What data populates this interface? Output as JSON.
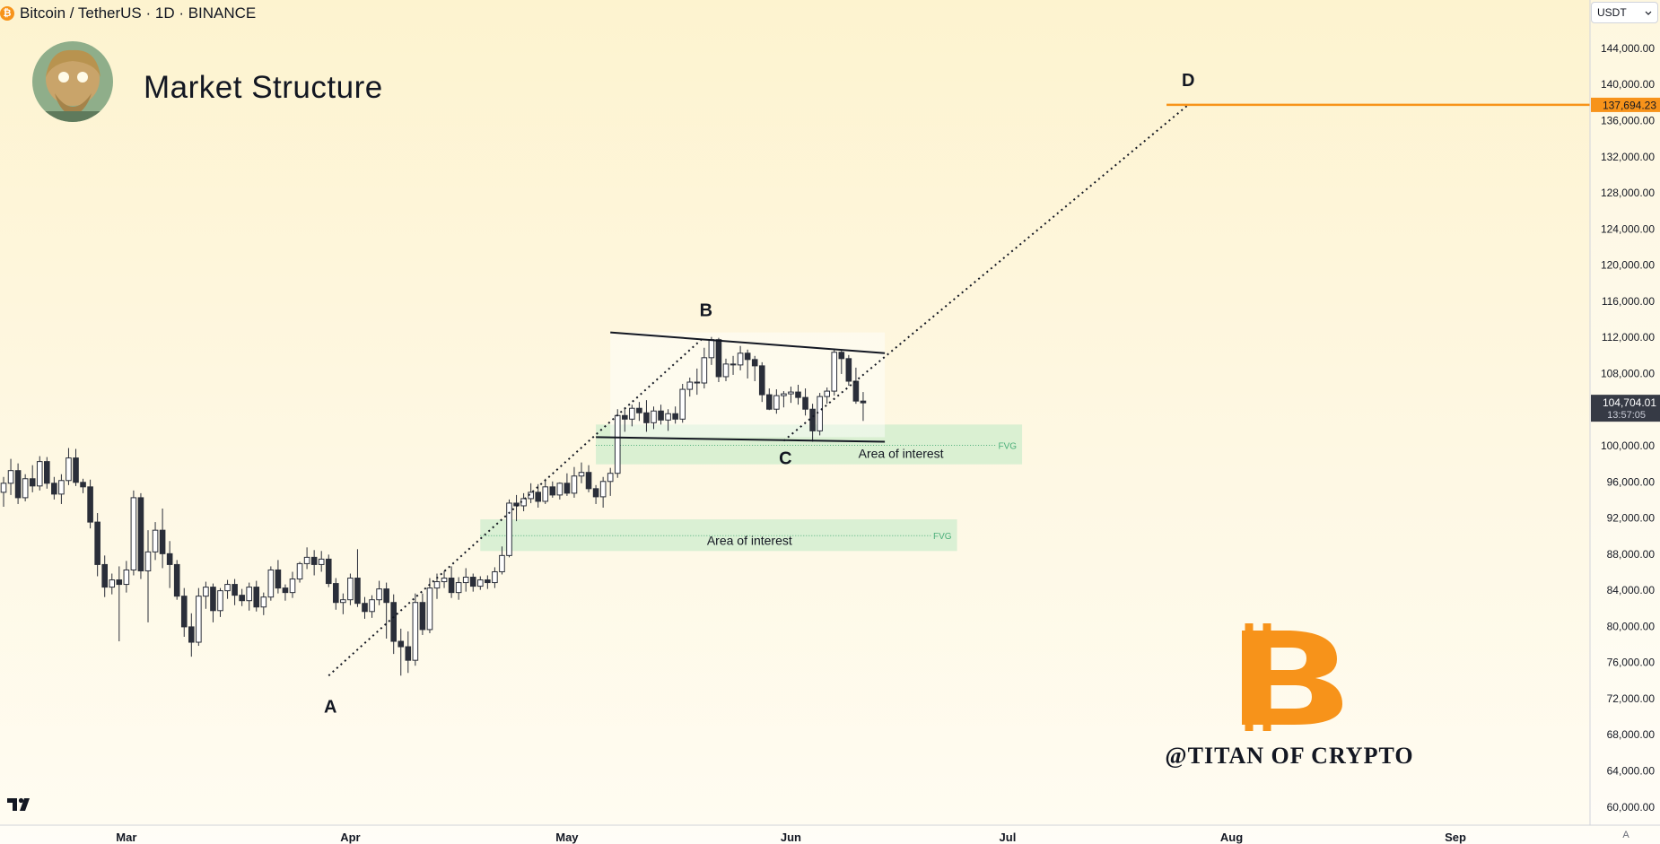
{
  "header": {
    "symbol_title": "Bitcoin / TetherUS · 1D · BINANCE",
    "coin_icon": "bitcoin-icon",
    "currency": "USDT",
    "currency_icon": "chevron-down-icon"
  },
  "headline": "Market Structure",
  "watermark": "@TITAN OF CRYPTO",
  "scale_mode": "A",
  "colors": {
    "up_candle": "#ffffff",
    "down_candle": "#2a2e39",
    "target_line": "#f7931a",
    "zone_fill": "#b5e8c2",
    "fvg_text": "#4caf7a",
    "price_label_bg": "#363a45"
  },
  "chart_data": {
    "type": "candlestick",
    "symbol": "Bitcoin / TetherUS",
    "interval": "1D",
    "exchange": "BINANCE",
    "y_axis": {
      "range": [
        58000,
        148000
      ],
      "ticks": [
        "60,000.00",
        "64,000.00",
        "68,000.00",
        "72,000.00",
        "76,000.00",
        "80,000.00",
        "84,000.00",
        "88,000.00",
        "92,000.00",
        "96,000.00",
        "100,000.00",
        "104,000.00",
        "108,000.00",
        "112,000.00",
        "116,000.00",
        "120,000.00",
        "124,000.00",
        "128,000.00",
        "132,000.00",
        "136,000.00",
        "140,000.00",
        "144,000.00"
      ]
    },
    "x_axis": {
      "labels": [
        {
          "text": "Mar",
          "day": 17
        },
        {
          "text": "Apr",
          "day": 48
        },
        {
          "text": "May",
          "day": 78
        },
        {
          "text": "Jun",
          "day": 109
        },
        {
          "text": "Jul",
          "day": 139
        },
        {
          "text": "Aug",
          "day": 170
        },
        {
          "text": "Sep",
          "day": 201
        }
      ]
    },
    "current_price": {
      "value": "104,704.01",
      "countdown": "13:57:05",
      "price": 104704
    },
    "target_price": {
      "value": "137,694.23",
      "price": 137694
    },
    "candles": [
      [
        94800,
        96500,
        93200,
        95800
      ],
      [
        95800,
        98500,
        94500,
        97200
      ],
      [
        97200,
        98000,
        93500,
        94200
      ],
      [
        94200,
        96800,
        93800,
        96300
      ],
      [
        96300,
        97800,
        94800,
        95500
      ],
      [
        95500,
        98800,
        95000,
        98200
      ],
      [
        98200,
        98700,
        95200,
        95800
      ],
      [
        95800,
        96500,
        94000,
        94600
      ],
      [
        94600,
        96800,
        93500,
        96100
      ],
      [
        96100,
        99700,
        95600,
        98600
      ],
      [
        98600,
        99600,
        95500,
        95900
      ],
      [
        95900,
        96300,
        94700,
        95400
      ],
      [
        95400,
        96200,
        90800,
        91500
      ],
      [
        91500,
        92500,
        85500,
        86800
      ],
      [
        86800,
        87800,
        83200,
        84300
      ],
      [
        84300,
        85800,
        83500,
        85100
      ],
      [
        85100,
        86600,
        78300,
        84600
      ],
      [
        84600,
        87200,
        83700,
        86200
      ],
      [
        86200,
        95000,
        85600,
        94200
      ],
      [
        94200,
        94700,
        85200,
        86100
      ],
      [
        86100,
        90600,
        80400,
        88200
      ],
      [
        88200,
        91500,
        87300,
        90600
      ],
      [
        90600,
        93000,
        86400,
        88000
      ],
      [
        88000,
        89400,
        84200,
        86800
      ],
      [
        86800,
        87300,
        82900,
        83300
      ],
      [
        83300,
        84200,
        78800,
        79900
      ],
      [
        79900,
        81400,
        76600,
        78200
      ],
      [
        78200,
        84200,
        77800,
        83300
      ],
      [
        83300,
        84900,
        81900,
        84300
      ],
      [
        84300,
        84700,
        80400,
        81700
      ],
      [
        81700,
        84200,
        81000,
        83900
      ],
      [
        83900,
        85100,
        83000,
        84600
      ],
      [
        84600,
        85200,
        82300,
        83400
      ],
      [
        83400,
        84100,
        82200,
        82800
      ],
      [
        82800,
        84800,
        81700,
        84300
      ],
      [
        84300,
        85000,
        81600,
        82100
      ],
      [
        82100,
        83700,
        81200,
        83200
      ],
      [
        83200,
        86600,
        82800,
        86200
      ],
      [
        86200,
        87300,
        83600,
        84200
      ],
      [
        84200,
        84600,
        82800,
        83700
      ],
      [
        83700,
        86000,
        83100,
        85200
      ],
      [
        85200,
        87100,
        84800,
        86900
      ],
      [
        86900,
        88700,
        86300,
        87600
      ],
      [
        87600,
        88400,
        85600,
        86800
      ],
      [
        86800,
        88300,
        86000,
        87400
      ],
      [
        87400,
        87900,
        84300,
        84700
      ],
      [
        84700,
        85300,
        81800,
        82600
      ],
      [
        82600,
        83600,
        81300,
        82900
      ],
      [
        82900,
        85800,
        82300,
        85300
      ],
      [
        85300,
        88500,
        82100,
        82500
      ],
      [
        82500,
        83200,
        80800,
        81600
      ],
      [
        81600,
        83400,
        80900,
        82900
      ],
      [
        82900,
        85000,
        82300,
        84100
      ],
      [
        84100,
        84800,
        78600,
        82600
      ],
      [
        82600,
        83500,
        76900,
        78300
      ],
      [
        78300,
        79700,
        74500,
        77700
      ],
      [
        77700,
        79400,
        74800,
        76200
      ],
      [
        76200,
        83600,
        75600,
        82600
      ],
      [
        82600,
        83600,
        79000,
        79600
      ],
      [
        79600,
        85300,
        79200,
        84200
      ],
      [
        84200,
        85800,
        83000,
        84900
      ],
      [
        84900,
        86100,
        84200,
        85300
      ],
      [
        85300,
        86600,
        83100,
        83700
      ],
      [
        83700,
        85400,
        82900,
        84800
      ],
      [
        84800,
        86400,
        83800,
        85400
      ],
      [
        85400,
        85800,
        83800,
        84400
      ],
      [
        84400,
        85500,
        84000,
        85100
      ],
      [
        85100,
        85600,
        84100,
        84800
      ],
      [
        84800,
        86500,
        84200,
        86000
      ],
      [
        86000,
        88800,
        85700,
        87800
      ],
      [
        87800,
        94000,
        87600,
        93600
      ],
      [
        93600,
        94500,
        91600,
        93300
      ],
      [
        93300,
        94700,
        92700,
        94100
      ],
      [
        94100,
        95800,
        93600,
        94800
      ],
      [
        94800,
        95700,
        93100,
        93800
      ],
      [
        93800,
        96300,
        93500,
        95400
      ],
      [
        95400,
        96000,
        94200,
        94500
      ],
      [
        94500,
        95900,
        94000,
        95800
      ],
      [
        95800,
        96900,
        94400,
        94700
      ],
      [
        94700,
        97600,
        94200,
        96600
      ],
      [
        96600,
        98100,
        95800,
        97000
      ],
      [
        97000,
        97800,
        94800,
        95200
      ],
      [
        95200,
        95600,
        93500,
        94300
      ],
      [
        94300,
        96500,
        93100,
        96000
      ],
      [
        96000,
        97500,
        94400,
        96900
      ],
      [
        96900,
        104000,
        96400,
        103300
      ],
      [
        103300,
        104200,
        101500,
        102900
      ],
      [
        102900,
        104500,
        102100,
        104100
      ],
      [
        104100,
        104800,
        102700,
        103600
      ],
      [
        103600,
        105000,
        101500,
        102500
      ],
      [
        102500,
        104300,
        101800,
        103800
      ],
      [
        103800,
        104500,
        102300,
        102800
      ],
      [
        102800,
        104000,
        101600,
        103500
      ],
      [
        103500,
        104300,
        102400,
        102900
      ],
      [
        102900,
        106800,
        102500,
        106200
      ],
      [
        106200,
        107500,
        105400,
        107000
      ],
      [
        107000,
        108500,
        105600,
        106900
      ],
      [
        106900,
        110800,
        106300,
        109700
      ],
      [
        109700,
        112000,
        108900,
        111700
      ],
      [
        111700,
        111900,
        107000,
        107600
      ],
      [
        107600,
        109600,
        107100,
        109000
      ],
      [
        109000,
        109900,
        107800,
        108900
      ],
      [
        108900,
        111000,
        108300,
        110200
      ],
      [
        110200,
        110600,
        107400,
        109500
      ],
      [
        109500,
        109900,
        107100,
        108800
      ],
      [
        108800,
        109200,
        104800,
        105600
      ],
      [
        105600,
        106300,
        103900,
        104000
      ],
      [
        104000,
        106200,
        103500,
        105500
      ],
      [
        105500,
        106000,
        104200,
        105700
      ],
      [
        105700,
        106500,
        104700,
        105900
      ],
      [
        105900,
        106700,
        104500,
        105300
      ],
      [
        105300,
        106300,
        103300,
        104000
      ],
      [
        104000,
        104600,
        100400,
        101600
      ],
      [
        101600,
        105800,
        101100,
        105400
      ],
      [
        105400,
        106400,
        104600,
        106000
      ],
      [
        106000,
        110600,
        105500,
        110300
      ],
      [
        110300,
        110500,
        107900,
        109600
      ],
      [
        109600,
        110000,
        106600,
        107100
      ],
      [
        107100,
        108600,
        104600,
        104900
      ],
      [
        104900,
        105900,
        102700,
        104704
      ]
    ],
    "annotations": {
      "points": [
        {
          "label": "A",
          "day": 45,
          "price": 74500
        },
        {
          "label": "B",
          "day": 97,
          "price": 112000
        },
        {
          "label": "C",
          "day": 108,
          "price": 100500
        },
        {
          "label": "D",
          "day": 164,
          "price": 137694
        }
      ],
      "zones": [
        {
          "label": "Area of interest",
          "tag": "FVG",
          "from_day": 82,
          "to_day": 141,
          "low": 97900,
          "high": 102300,
          "mid": 100000
        },
        {
          "label": "Area of interest",
          "tag": "FVG",
          "from_day": 66,
          "to_day": 132,
          "low": 88300,
          "high": 91800,
          "mid": 90000
        }
      ],
      "channel": {
        "upper": [
          [
            84,
            112500
          ],
          [
            122,
            110200
          ]
        ],
        "lower": [
          [
            82,
            100900
          ],
          [
            122,
            100400
          ]
        ]
      },
      "target_line_from_day": 161
    }
  }
}
